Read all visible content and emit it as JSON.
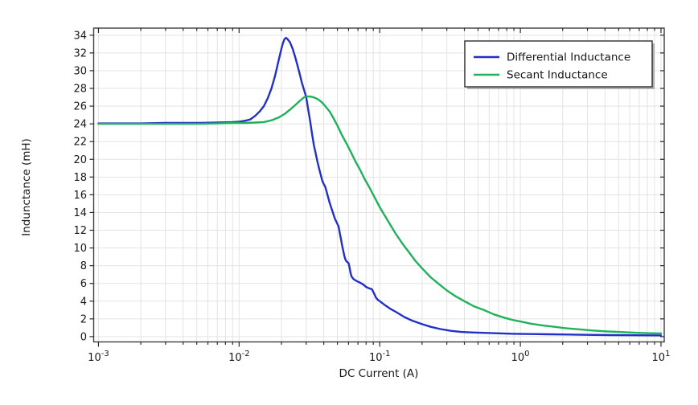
{
  "colors": {
    "background": "#ffffff",
    "grid": "#e3e3e3",
    "frame": "#3d3d3d",
    "tick": "#2a2a2a",
    "text": "#171717",
    "legend_border": "#2e2e2e",
    "legend_shadow": "#b0b0b0",
    "differential_blue": "#2230c8",
    "secant_green": "#1fb15c"
  },
  "chart_data": {
    "type": "line",
    "title": "",
    "xlabel": "DC Current (A)",
    "ylabel": "Indunctance (mH)",
    "x_scale": "log",
    "xlim_log": [
      -3.034,
      1.023
    ],
    "ylim": [
      -0.6,
      34.8
    ],
    "x_tick_exponents": [
      -3,
      -2,
      -1,
      0,
      1
    ],
    "x_tick_base": "10",
    "y_ticks": [
      0,
      2,
      4,
      6,
      8,
      10,
      12,
      14,
      16,
      18,
      20,
      22,
      24,
      26,
      28,
      30,
      32,
      34
    ],
    "grid": true,
    "legend_position": "top-right",
    "series": [
      {
        "name": "Differential Inductance",
        "color": "#2230c8",
        "points": [
          [
            0.001,
            24.05
          ],
          [
            0.002,
            24.05
          ],
          [
            0.003,
            24.1
          ],
          [
            0.005,
            24.1
          ],
          [
            0.007,
            24.15
          ],
          [
            0.009,
            24.2
          ],
          [
            0.01,
            24.25
          ],
          [
            0.011,
            24.35
          ],
          [
            0.012,
            24.5
          ],
          [
            0.013,
            24.9
          ],
          [
            0.014,
            25.4
          ],
          [
            0.015,
            26.0
          ],
          [
            0.016,
            26.9
          ],
          [
            0.017,
            28.0
          ],
          [
            0.018,
            29.4
          ],
          [
            0.019,
            31.0
          ],
          [
            0.02,
            32.5
          ],
          [
            0.0205,
            33.1
          ],
          [
            0.021,
            33.55
          ],
          [
            0.0215,
            33.7
          ],
          [
            0.022,
            33.6
          ],
          [
            0.023,
            33.2
          ],
          [
            0.024,
            32.5
          ],
          [
            0.025,
            31.6
          ],
          [
            0.026,
            30.6
          ],
          [
            0.027,
            29.6
          ],
          [
            0.028,
            28.6
          ],
          [
            0.029,
            27.8
          ],
          [
            0.03,
            27.0
          ],
          [
            0.031,
            25.6
          ],
          [
            0.032,
            24.3
          ],
          [
            0.033,
            22.9
          ],
          [
            0.034,
            21.6
          ],
          [
            0.035,
            20.7
          ],
          [
            0.036,
            19.8
          ],
          [
            0.037,
            19.0
          ],
          [
            0.038,
            18.3
          ],
          [
            0.039,
            17.6
          ],
          [
            0.04,
            17.2
          ],
          [
            0.041,
            16.9
          ],
          [
            0.042,
            16.3
          ],
          [
            0.043,
            15.7
          ],
          [
            0.044,
            15.1
          ],
          [
            0.046,
            14.2
          ],
          [
            0.048,
            13.3
          ],
          [
            0.05,
            12.7
          ],
          [
            0.051,
            12.4
          ],
          [
            0.052,
            11.7
          ],
          [
            0.053,
            11.0
          ],
          [
            0.054,
            10.3
          ],
          [
            0.055,
            9.7
          ],
          [
            0.056,
            9.1
          ],
          [
            0.057,
            8.7
          ],
          [
            0.058,
            8.5
          ],
          [
            0.06,
            8.3
          ],
          [
            0.061,
            7.8
          ],
          [
            0.062,
            7.2
          ],
          [
            0.063,
            6.8
          ],
          [
            0.065,
            6.5
          ],
          [
            0.068,
            6.3
          ],
          [
            0.072,
            6.1
          ],
          [
            0.076,
            5.9
          ],
          [
            0.08,
            5.6
          ],
          [
            0.084,
            5.45
          ],
          [
            0.088,
            5.35
          ],
          [
            0.091,
            4.9
          ],
          [
            0.094,
            4.4
          ],
          [
            0.097,
            4.15
          ],
          [
            0.1,
            4.0
          ],
          [
            0.11,
            3.5
          ],
          [
            0.12,
            3.1
          ],
          [
            0.13,
            2.8
          ],
          [
            0.15,
            2.2
          ],
          [
            0.17,
            1.8
          ],
          [
            0.2,
            1.4
          ],
          [
            0.23,
            1.1
          ],
          [
            0.27,
            0.85
          ],
          [
            0.32,
            0.65
          ],
          [
            0.38,
            0.52
          ],
          [
            0.45,
            0.47
          ],
          [
            0.55,
            0.42
          ],
          [
            0.7,
            0.37
          ],
          [
            0.9,
            0.32
          ],
          [
            1.2,
            0.29
          ],
          [
            1.6,
            0.26
          ],
          [
            2.2,
            0.23
          ],
          [
            3.0,
            0.2
          ],
          [
            4.5,
            0.17
          ],
          [
            6.5,
            0.15
          ],
          [
            10,
            0.13
          ]
        ]
      },
      {
        "name": "Secant Inductance",
        "color": "#1fb15c",
        "points": [
          [
            0.001,
            24.0
          ],
          [
            0.002,
            24.0
          ],
          [
            0.003,
            24.0
          ],
          [
            0.005,
            24.0
          ],
          [
            0.007,
            24.05
          ],
          [
            0.009,
            24.1
          ],
          [
            0.011,
            24.1
          ],
          [
            0.013,
            24.15
          ],
          [
            0.015,
            24.2
          ],
          [
            0.017,
            24.4
          ],
          [
            0.019,
            24.7
          ],
          [
            0.021,
            25.1
          ],
          [
            0.023,
            25.6
          ],
          [
            0.025,
            26.1
          ],
          [
            0.027,
            26.6
          ],
          [
            0.029,
            27.0
          ],
          [
            0.031,
            27.1
          ],
          [
            0.033,
            27.05
          ],
          [
            0.035,
            26.9
          ],
          [
            0.037,
            26.7
          ],
          [
            0.039,
            26.4
          ],
          [
            0.041,
            26.0
          ],
          [
            0.044,
            25.4
          ],
          [
            0.047,
            24.6
          ],
          [
            0.05,
            23.8
          ],
          [
            0.054,
            22.7
          ],
          [
            0.058,
            21.8
          ],
          [
            0.062,
            20.9
          ],
          [
            0.067,
            19.8
          ],
          [
            0.072,
            18.9
          ],
          [
            0.078,
            17.8
          ],
          [
            0.084,
            16.9
          ],
          [
            0.09,
            16.0
          ],
          [
            0.1,
            14.6
          ],
          [
            0.11,
            13.5
          ],
          [
            0.12,
            12.5
          ],
          [
            0.13,
            11.6
          ],
          [
            0.145,
            10.5
          ],
          [
            0.16,
            9.6
          ],
          [
            0.18,
            8.5
          ],
          [
            0.2,
            7.7
          ],
          [
            0.23,
            6.7
          ],
          [
            0.26,
            6.0
          ],
          [
            0.3,
            5.2
          ],
          [
            0.35,
            4.5
          ],
          [
            0.4,
            4.0
          ],
          [
            0.47,
            3.4
          ],
          [
            0.55,
            3.0
          ],
          [
            0.65,
            2.5
          ],
          [
            0.78,
            2.1
          ],
          [
            0.9,
            1.85
          ],
          [
            1.0,
            1.7
          ],
          [
            1.2,
            1.45
          ],
          [
            1.45,
            1.25
          ],
          [
            1.75,
            1.1
          ],
          [
            2.1,
            0.95
          ],
          [
            2.6,
            0.82
          ],
          [
            3.2,
            0.7
          ],
          [
            4.0,
            0.6
          ],
          [
            5.0,
            0.52
          ],
          [
            6.3,
            0.45
          ],
          [
            8.0,
            0.39
          ],
          [
            10,
            0.35
          ]
        ]
      }
    ]
  }
}
